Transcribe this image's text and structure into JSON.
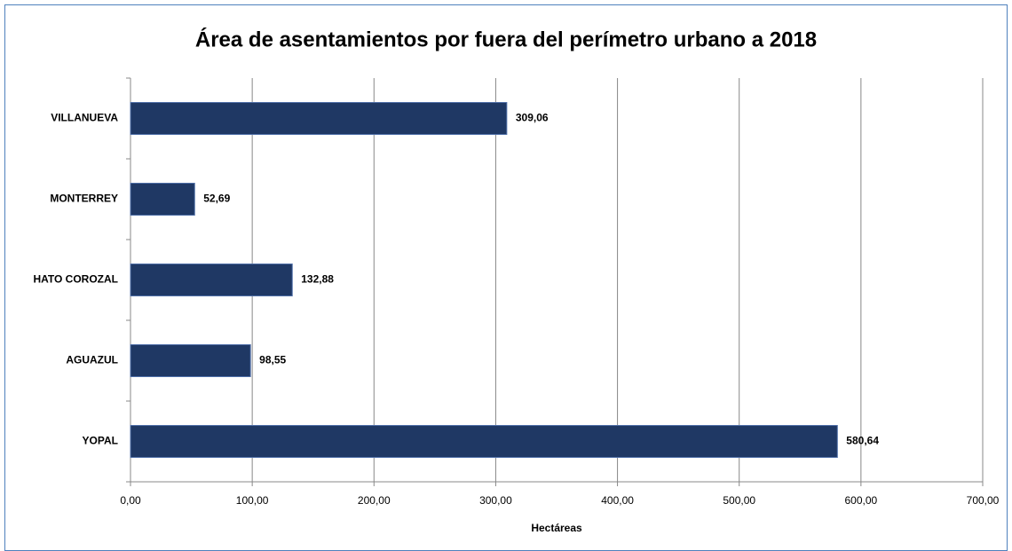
{
  "chart_data": {
    "type": "bar",
    "orientation": "horizontal",
    "title": "Área de asentamientos por fuera del perímetro urbano a 2018",
    "x_label": "Hectáreas",
    "categories": [
      "VILLANUEVA",
      "MONTERREY",
      "HATO COROZAL",
      "AGUAZUL",
      "YOPAL"
    ],
    "values": [
      309.06,
      52.69,
      132.88,
      98.55,
      580.64
    ],
    "value_labels": [
      "309,06",
      "52,69",
      "132,88",
      "98,55",
      "580,64"
    ],
    "color": "#1f3864",
    "xlim": [
      0,
      700
    ],
    "xticks": [
      {
        "value": 0,
        "label": "0,00"
      },
      {
        "value": 100,
        "label": "100,00"
      },
      {
        "value": 200,
        "label": "200,00"
      },
      {
        "value": 300,
        "label": "300,00"
      },
      {
        "value": 400,
        "label": "400,00"
      },
      {
        "value": 500,
        "label": "500,00"
      },
      {
        "value": 600,
        "label": "600,00"
      },
      {
        "value": 700,
        "label": "700,00"
      }
    ],
    "grid": true
  }
}
